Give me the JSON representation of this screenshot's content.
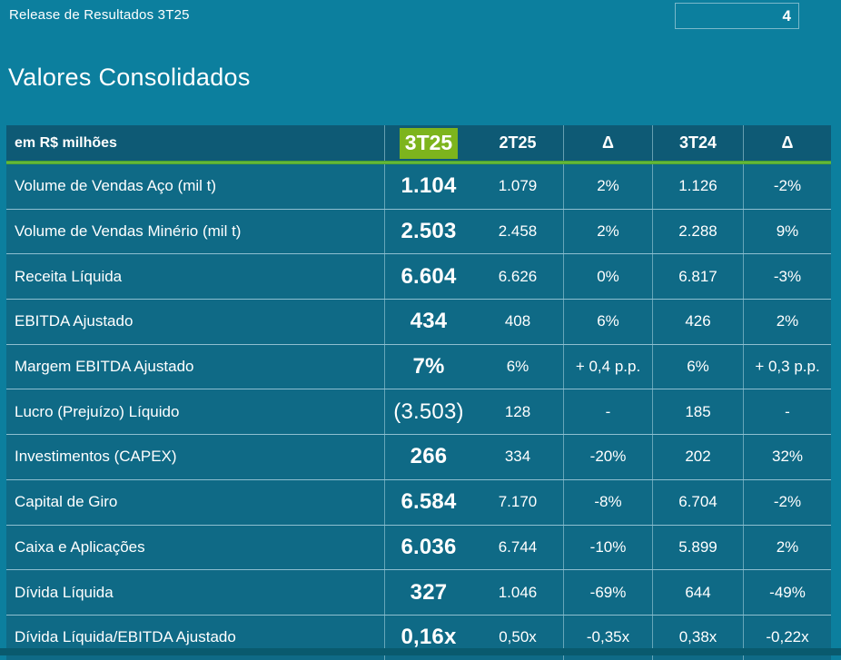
{
  "page": {
    "header_left": "Release de Resultados 3T25",
    "page_number": "4",
    "title": "Valores Consolidados"
  },
  "colors": {
    "page_bg": "#0C7F9E",
    "table_header_bg": "#0E5A75",
    "row_bg": "#0F6A86",
    "accent_green": "#7DB41D",
    "underline_green": "#5CB535",
    "divider": "#76A7B8",
    "bottom_strip": "#095A6E"
  },
  "table": {
    "unit_label": "em R$ milhões",
    "highlight_column": "3T25",
    "columns": [
      "3T25",
      "2T25",
      "Δ",
      "3T24",
      "Δ"
    ],
    "rows": [
      {
        "label": "Volume de Vendas Aço (mil t)",
        "values": [
          "1.104",
          "1.079",
          "2%",
          "1.126",
          "-2%"
        ]
      },
      {
        "label": "Volume de Vendas Minério (mil t)",
        "values": [
          "2.503",
          "2.458",
          "2%",
          "2.288",
          "9%"
        ]
      },
      {
        "label": "Receita Líquida",
        "values": [
          "6.604",
          "6.626",
          "0%",
          "6.817",
          "-3%"
        ]
      },
      {
        "label": "EBITDA Ajustado",
        "values": [
          "434",
          "408",
          "6%",
          "426",
          "2%"
        ]
      },
      {
        "label": "Margem EBITDA Ajustado",
        "values": [
          "7%",
          "6%",
          "+ 0,4 p.p.",
          "6%",
          "+ 0,3 p.p."
        ]
      },
      {
        "label": "Lucro (Prejuízo) Líquido",
        "values": [
          "(3.503)",
          "128",
          "-",
          "185",
          "-"
        ],
        "value_style": "light"
      },
      {
        "label": "Investimentos (CAPEX)",
        "values": [
          "266",
          "334",
          "-20%",
          "202",
          "32%"
        ]
      },
      {
        "label": "Capital de Giro",
        "values": [
          "6.584",
          "7.170",
          "-8%",
          "6.704",
          "-2%"
        ]
      },
      {
        "label": "Caixa e Aplicações",
        "values": [
          "6.036",
          "6.744",
          "-10%",
          "5.899",
          "2%"
        ]
      },
      {
        "label": "Dívida Líquida",
        "values": [
          "327",
          "1.046",
          "-69%",
          "644",
          "-49%"
        ]
      },
      {
        "label": "Dívida Líquida/EBITDA Ajustado",
        "values": [
          "0,16x",
          "0,50x",
          "-0,35x",
          "0,38x",
          "-0,22x"
        ]
      }
    ]
  }
}
